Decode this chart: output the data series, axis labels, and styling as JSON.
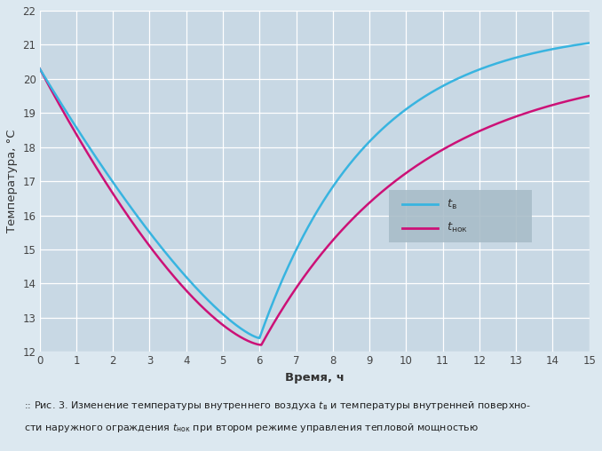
{
  "xlabel": "Время, ч",
  "ylabel": "Температура, °C",
  "xlim": [
    0,
    15
  ],
  "ylim": [
    12,
    22
  ],
  "xticks": [
    0,
    1,
    2,
    3,
    4,
    5,
    6,
    7,
    8,
    9,
    10,
    11,
    12,
    13,
    14,
    15
  ],
  "yticks": [
    12,
    13,
    14,
    15,
    16,
    17,
    18,
    19,
    20,
    21,
    22
  ],
  "plot_bg_color": "#c8d8e4",
  "fig_bg_color": "#dce8f0",
  "grid_color": "#ffffff",
  "line1_color": "#38b4e0",
  "line2_color": "#cc1177",
  "legend_bg": "#a8bcc8",
  "legend_edge": "none"
}
